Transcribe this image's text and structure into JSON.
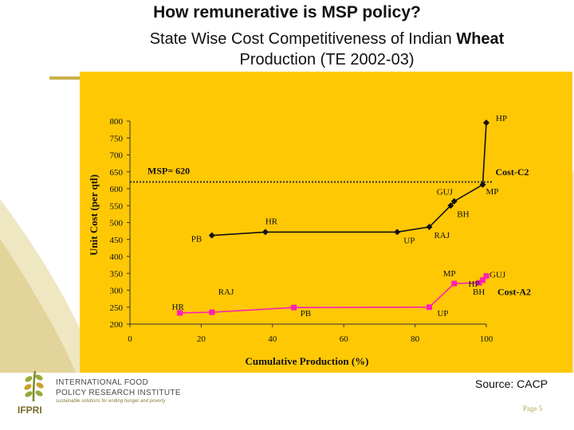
{
  "slide": {
    "title": "How remunerative is MSP policy?",
    "subtitle_part1": "State Wise Cost Competitiveness of Indian",
    "subtitle_bold": "Wheat",
    "subtitle_part2": "Production (TE 2002-03)",
    "source": "Source: CACP",
    "page": "Page 5",
    "accent_color": "#ffc805"
  },
  "logo": {
    "org_line1": "INTERNATIONAL FOOD",
    "org_line2": "POLICY RESEARCH INSTITUTE",
    "tagline": "sustainable solutions for ending hunger and poverty",
    "short": "IFPRI"
  },
  "chart_data": {
    "type": "line",
    "xlabel": "Cumulative Production (%)",
    "ylabel": "Unit Cost (per qtl)",
    "xlim": [
      0,
      100
    ],
    "ylim": [
      200,
      800
    ],
    "x_ticks": [
      0,
      20,
      40,
      60,
      80,
      100
    ],
    "y_ticks": [
      200,
      250,
      300,
      350,
      400,
      450,
      500,
      550,
      600,
      650,
      700,
      750,
      800
    ],
    "grid": false,
    "reference_line": {
      "value": 620,
      "label": "MSP= 620"
    },
    "series": [
      {
        "name": "Cost-C2",
        "color": "#111111",
        "marker": "diamond",
        "points": [
          {
            "x": 23,
            "y": 462,
            "label": "PB"
          },
          {
            "x": 38,
            "y": 472,
            "label": "HR"
          },
          {
            "x": 75,
            "y": 472,
            "label": "UP"
          },
          {
            "x": 84,
            "y": 487,
            "label": "RAJ"
          },
          {
            "x": 90,
            "y": 550,
            "label": "BH"
          },
          {
            "x": 91,
            "y": 563,
            "label": "GUJ"
          },
          {
            "x": 99,
            "y": 612,
            "label": "MP"
          },
          {
            "x": 100,
            "y": 795,
            "label": "HP"
          }
        ]
      },
      {
        "name": "Cost-A2",
        "color": "#ff1fb4",
        "marker": "square",
        "points": [
          {
            "x": 14,
            "y": 233,
            "label": "HR"
          },
          {
            "x": 23,
            "y": 235,
            "label": "RAJ"
          },
          {
            "x": 46,
            "y": 249,
            "label": "PB"
          },
          {
            "x": 84,
            "y": 250,
            "label": "UP"
          },
          {
            "x": 91,
            "y": 320,
            "label": "MP"
          },
          {
            "x": 98,
            "y": 322,
            "label": "BH"
          },
          {
            "x": 99,
            "y": 330,
            "label": "HP"
          },
          {
            "x": 100,
            "y": 342,
            "label": "GUJ"
          }
        ]
      }
    ]
  }
}
